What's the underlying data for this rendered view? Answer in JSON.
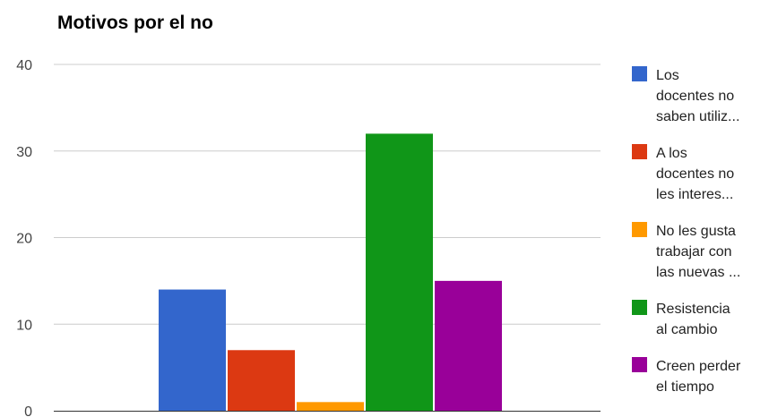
{
  "chart_data": {
    "type": "bar",
    "title": "Motivos por el no",
    "xlabel": "",
    "ylabel": "",
    "ylim": [
      0,
      40
    ],
    "yticks": [
      0,
      10,
      20,
      30,
      40
    ],
    "grid": true,
    "legend_position": "right",
    "series": [
      {
        "name": "Los docentes no saben utiliz...",
        "legend_lines": [
          "Los",
          "docentes no",
          "saben utiliz..."
        ],
        "value": 14,
        "color": "#3366cc"
      },
      {
        "name": "A los docentes no les interes...",
        "legend_lines": [
          "A los",
          "docentes no",
          "les interes..."
        ],
        "value": 7,
        "color": "#dc3912"
      },
      {
        "name": "No les gusta trabajar con las nuevas ...",
        "legend_lines": [
          "No les gusta",
          "trabajar con",
          "las nuevas ..."
        ],
        "value": 1,
        "color": "#ff9900"
      },
      {
        "name": "Resistencia al cambio",
        "legend_lines": [
          "Resistencia",
          "al cambio"
        ],
        "value": 32,
        "color": "#109618"
      },
      {
        "name": "Creen perder el tiempo",
        "legend_lines": [
          "Creen perder",
          "el tiempo"
        ],
        "value": 15,
        "color": "#990099"
      }
    ]
  }
}
